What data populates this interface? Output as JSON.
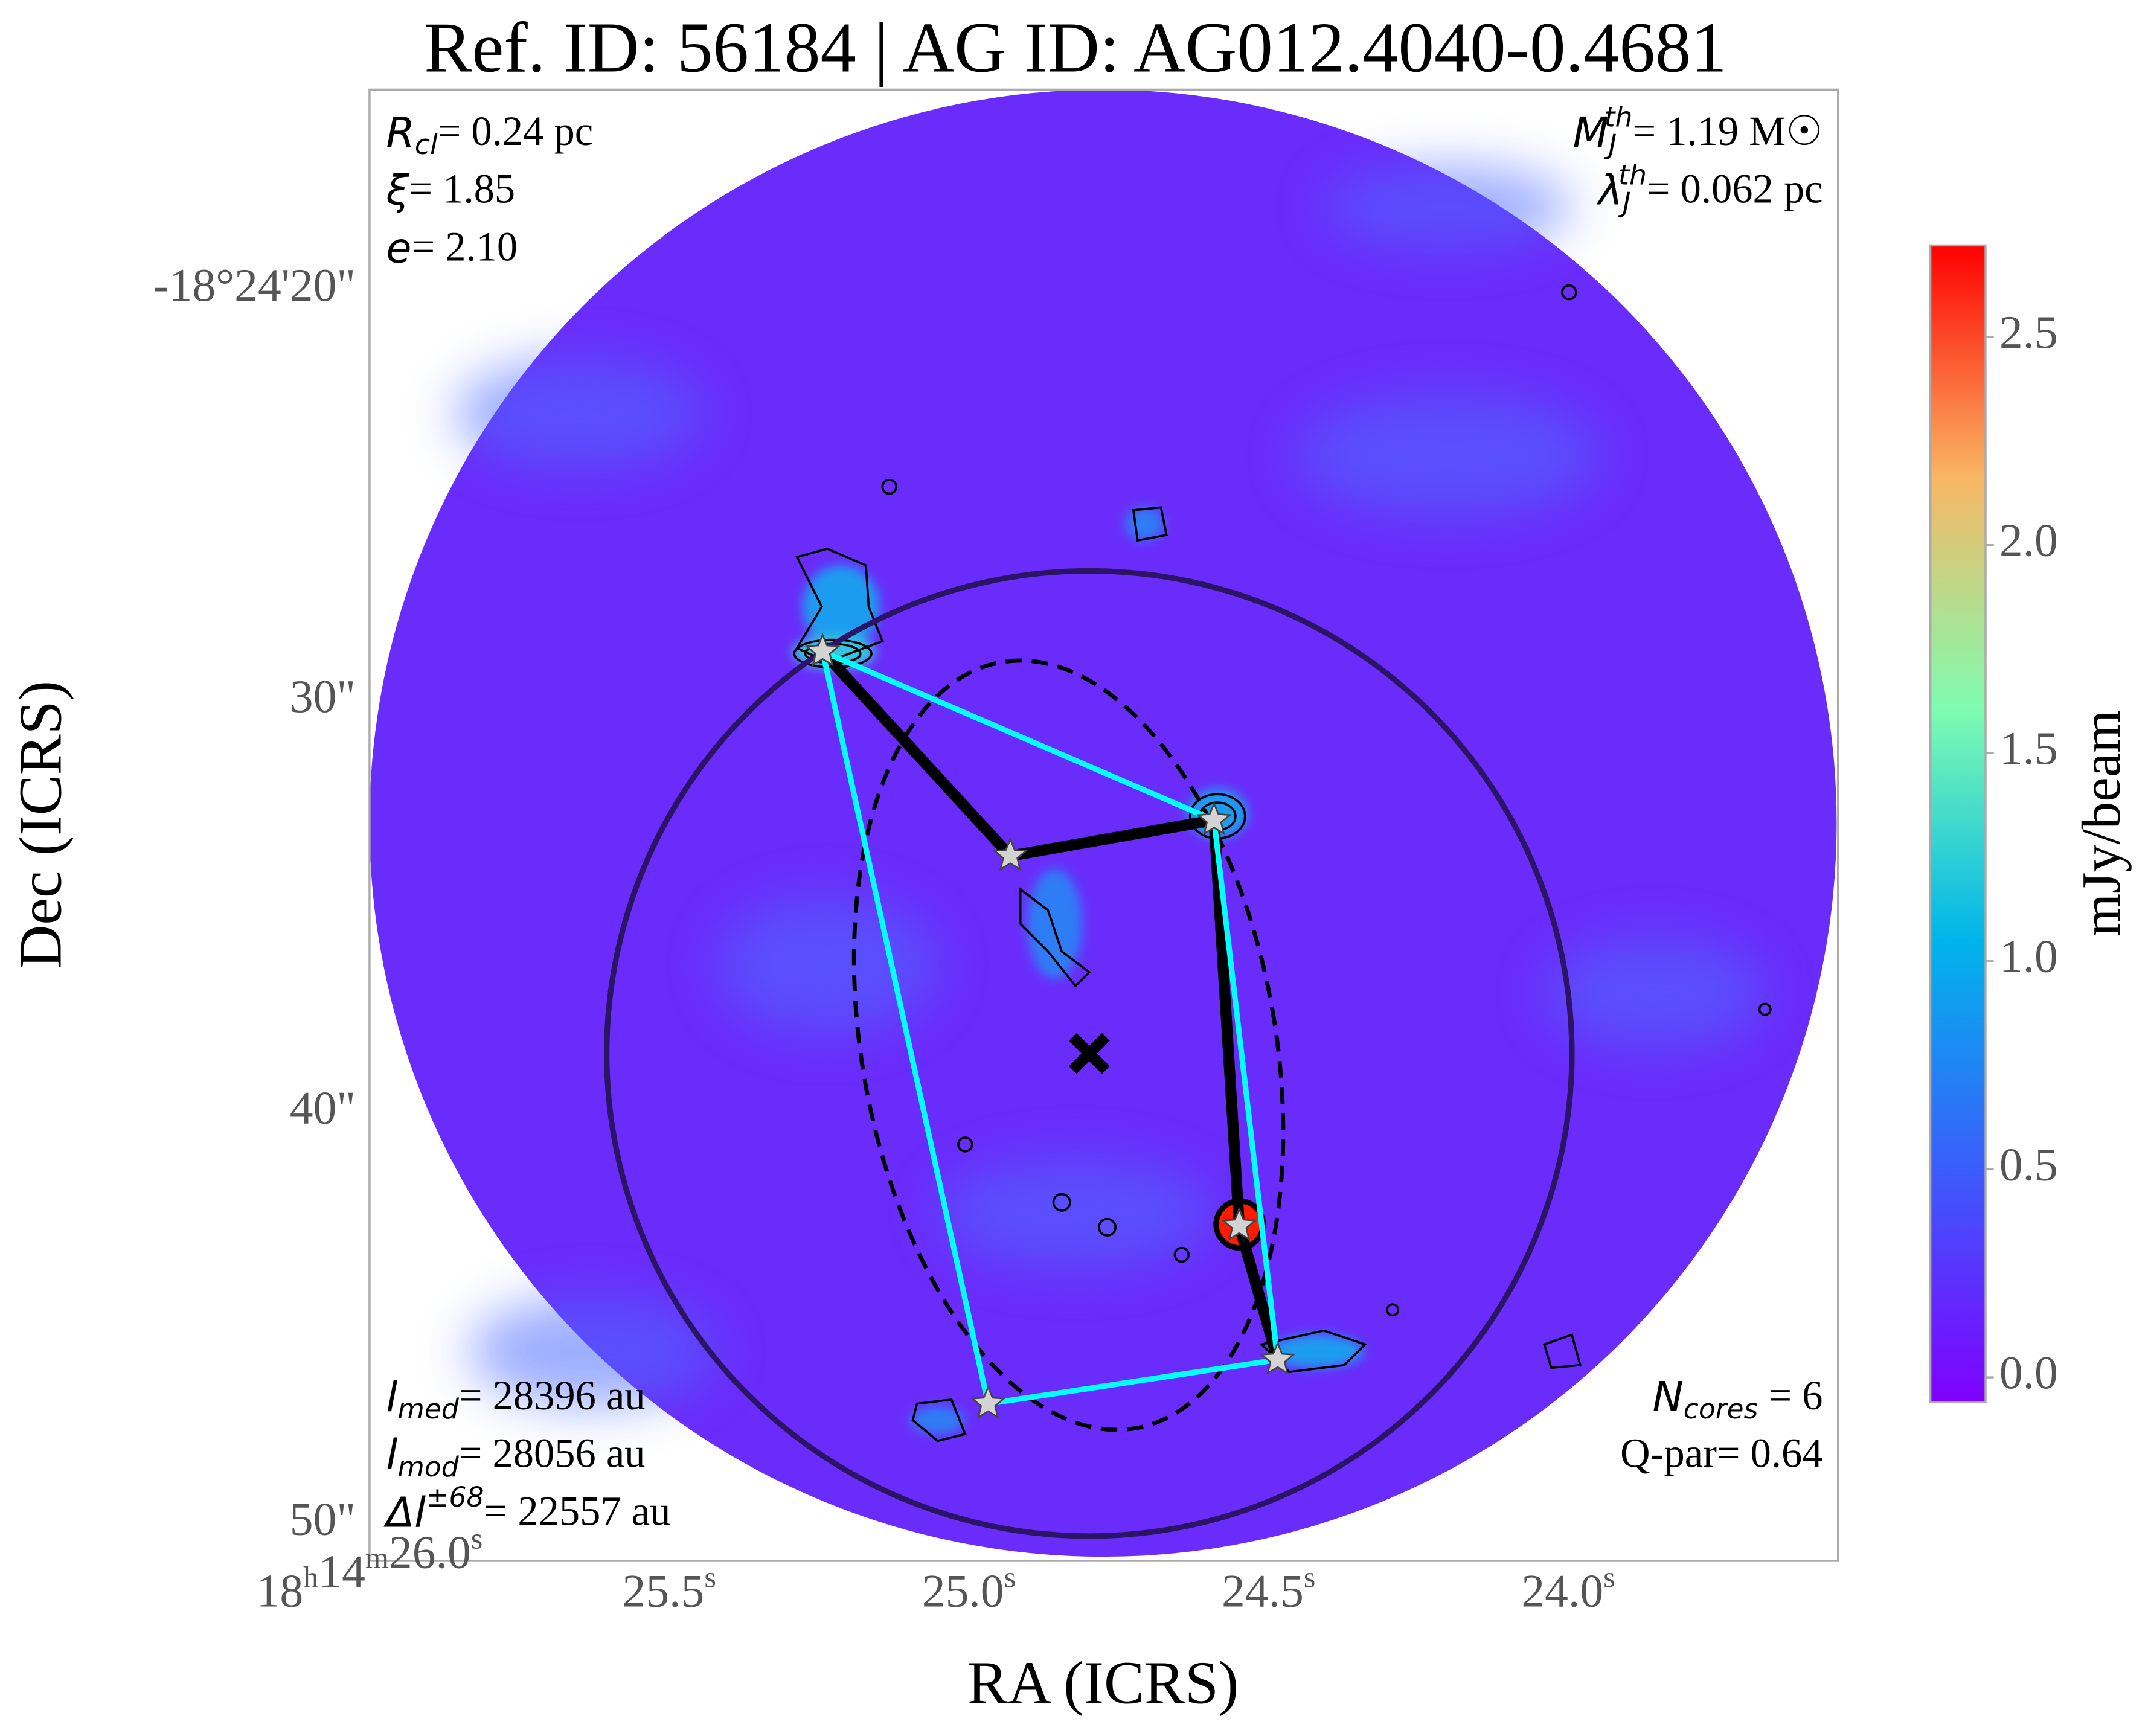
{
  "chart_data": {
    "type": "scatter",
    "title": "Ref. ID: 56184 | AG ID: AG012.4040-0.4681",
    "x_label": "RA (ICRS)",
    "y_label": "Dec (ICRS)",
    "x": [
      25.244,
      24.931,
      24.591,
      24.549,
      24.485,
      24.968
    ],
    "values": [
      28.79,
      33.76,
      32.89,
      42.75,
      46.01,
      47.08
    ],
    "color": "#d3d3d3",
    "mst_edges": [
      [
        0,
        1
      ],
      [
        1,
        2
      ],
      [
        2,
        3
      ],
      [
        3,
        4
      ]
    ],
    "mst_color": "#000000",
    "hull": [
      0,
      2,
      4,
      5
    ],
    "hull_color": "#00ffff",
    "xlim": [
      26.0,
      23.55
    ],
    "ylim": [
      15.13,
      50.9
    ],
    "xticks": [
      {
        "value": 26.0,
        "label": "18h14m26.0s"
      },
      {
        "value": 25.5,
        "label": "25.5s"
      },
      {
        "value": 25.0,
        "label": "25.0s"
      },
      {
        "value": 24.5,
        "label": "24.5s"
      },
      {
        "value": 24.0,
        "label": "24.0s"
      }
    ],
    "yticks": [
      {
        "value": 20,
        "label": "-18°24'20\""
      },
      {
        "value": 30,
        "label": "30\""
      },
      {
        "value": 40,
        "label": "40\""
      },
      {
        "value": 50,
        "label": "50\""
      }
    ],
    "colorbar": {
      "label": "mJy/beam",
      "lim": [
        -0.06,
        2.72
      ],
      "ticks": [
        {
          "value": 0,
          "label": "0.0"
        },
        0.5,
        {
          "value": 1,
          "label": "1.0"
        },
        1.5,
        {
          "value": 2,
          "label": "2.0"
        },
        2.5
      ]
    },
    "annotations": {
      "top_left": [
        {
          "sym": "R",
          "sub": "cl",
          "text": "= 0.24 pc"
        },
        {
          "sym": "ξ",
          "text": "= 1.85"
        },
        {
          "sym": "e",
          "text": "= 2.10"
        }
      ],
      "top_right": [
        {
          "sym": "M",
          "sub": "J",
          "sup": "th",
          "text": "= 1.19 M☉"
        },
        {
          "sym": "λ",
          "sub": "J",
          "sup": "th",
          "text": "= 0.062 pc"
        }
      ],
      "bottom_left": [
        {
          "sym": "l",
          "sub": "med",
          "text": "= 28396 au"
        },
        {
          "sym": "l",
          "sub": "mod",
          "text": "= 28056 au"
        },
        {
          "sym": "Δl",
          "sup": "±68",
          "text": "= 22557 au"
        }
      ],
      "bottom_right": [
        {
          "sym": "N",
          "sub": "cores",
          "text": " = 6"
        },
        {
          "text": "Q-par= 0.64"
        }
      ]
    }
  }
}
